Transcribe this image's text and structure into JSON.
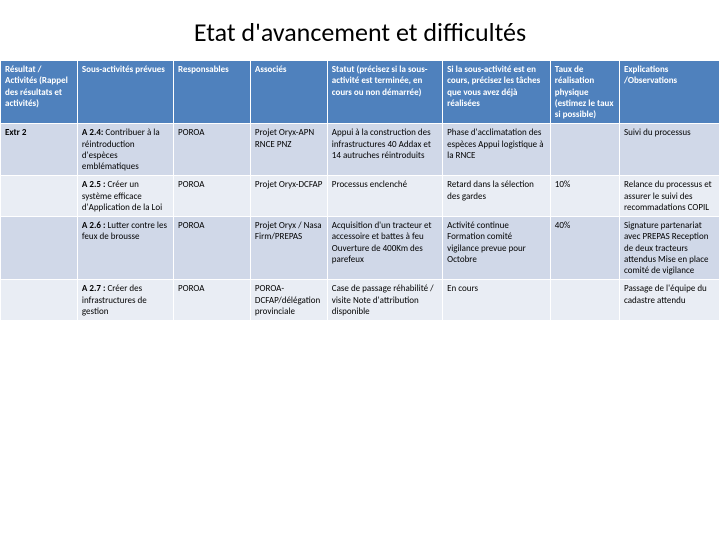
{
  "title": "Etat d'avancement et difficultés",
  "colors": {
    "header_bg": "#4f81bd",
    "header_text": "#ffffff",
    "rowA_bg": "#d0d8e8",
    "rowB_bg": "#e9edf4",
    "border": "#ffffff"
  },
  "columns": [
    "Résultat / Activités (Rappel des résultats et activités)",
    "Sous-activités prévues",
    "Responsables",
    "Associés",
    "Statut (précisez si la sous-activité est terminée, en cours ou non démarrée)",
    "Si la sous-activité est en cours, précisez les tâches que vous avez déjà réalisées",
    "Taux de réalisation physique (estimez le taux si possible)",
    "Explications /Observations"
  ],
  "result_label": "Extr 2",
  "rows": [
    {
      "activity_code": "A 2.4:",
      "activity_text": " Contribuer à la réintroduction d'espèces emblématiques",
      "responsable": "POROA",
      "associes": "Projet Oryx-APN RNCE PNZ",
      "statut": "Appui à la construction des infrastructures 40 Addax et 14 autruches réintroduits",
      "taches": "Phase d'acclimatation des espèces Appui logistique à la RNCE",
      "taux": "",
      "explications": "Suivi du processus"
    },
    {
      "activity_code": "A 2.5 :",
      "activity_text": " Créer un système efficace d'Application de la Loi",
      "responsable": "POROA",
      "associes": "Projet Oryx-DCFAP",
      "statut": "Processus enclenché",
      "taches": "Retard dans la sélection des gardes",
      "taux": "10%",
      "explications": "Relance du processus et assurer le suivi des recommadations COPIL"
    },
    {
      "activity_code": "A 2.6 :",
      "activity_text": " Lutter contre les feux de brousse",
      "responsable": "POROA",
      "associes": "Projet Oryx / Nasa Firm/PREPAS",
      "statut": "Acquisition d'un tracteur et accessoire et battes à feu\n\nOuverture de 400Km des parefeux",
      "taches": "Activité continue\n\nFormation comité vigilance prevue pour Octobre",
      "taux": "40%",
      "explications": "Signature partenariat avec PREPAS Reception de deux tracteurs attendus Mise en place comité de vigilance"
    },
    {
      "activity_code": "A 2.7 :",
      "activity_text": " Créer des infrastructures de gestion",
      "responsable": "POROA",
      "associes": "POROA-DCFAP/délégation provinciale",
      "statut": "Case de passage réhabilité / visite Note d'attribution disponible",
      "taches": "En cours",
      "taux": "",
      "explications": "Passage de l'équipe du cadastre attendu"
    }
  ]
}
